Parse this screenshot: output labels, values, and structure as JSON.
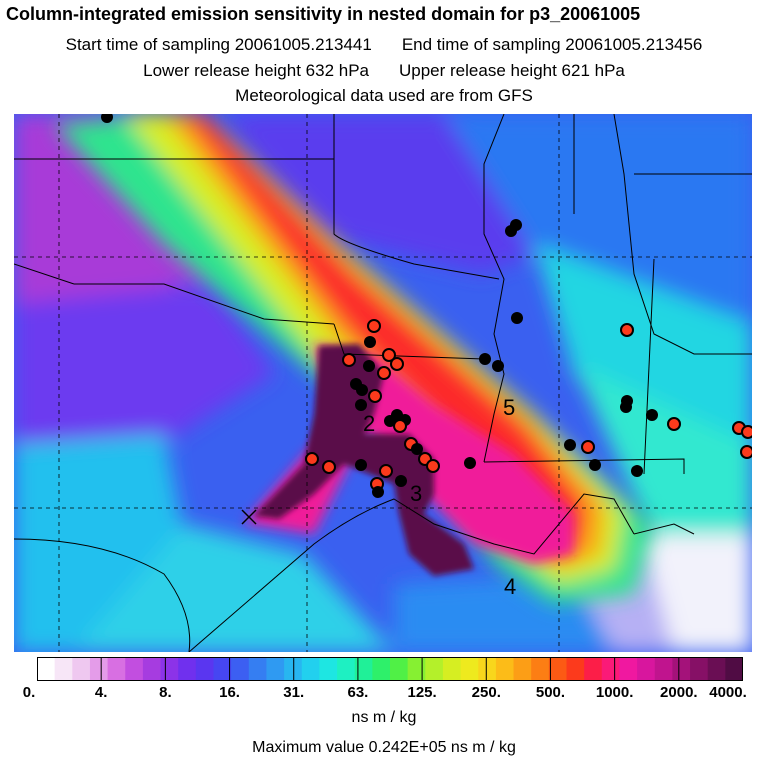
{
  "header": {
    "title": "Column-integrated emission sensitivity in nested domain for p3_20061005",
    "start_time": "Start time of sampling 20061005.213441",
    "end_time": "End time of sampling 20061005.213456",
    "lower_height": "Lower release height  632 hPa",
    "upper_height": "Upper release height  621 hPa",
    "met_data": "Meteorological data used are from GFS"
  },
  "colorbar": {
    "tick_labels": [
      "0.",
      "4.",
      "8.",
      "16.",
      "31.",
      "63.",
      "125.",
      "250.",
      "500.",
      "1000.",
      "2000.",
      "4000."
    ],
    "colors": [
      "#ffffff",
      "#f7e6f7",
      "#efc8f0",
      "#e49ce9",
      "#d86fe2",
      "#c24ee0",
      "#a63ce0",
      "#8c33e8",
      "#7030ee",
      "#5a36f0",
      "#4646f2",
      "#3c5ff2",
      "#357ef2",
      "#2f9af2",
      "#28b6f0",
      "#22d0ee",
      "#1ee6e2",
      "#1ef0c2",
      "#20f098",
      "#2ef06a",
      "#50f046",
      "#86f032",
      "#b4f02a",
      "#d6ee22",
      "#eeea1e",
      "#f8d61c",
      "#fcbc18",
      "#fc9e16",
      "#fc7e14",
      "#fc5a14",
      "#fc3a1c",
      "#fc1e48",
      "#fa1a78",
      "#f018a0",
      "#d8169e",
      "#c0148e",
      "#a4127a",
      "#861066",
      "#6a0e54",
      "#500c44"
    ],
    "units": "ns m / kg",
    "max_value": "Maximum value  0.242E+05 ns m / kg"
  },
  "map": {
    "labels": [
      "2",
      "3",
      "4",
      "5"
    ],
    "release_marker": "×"
  }
}
